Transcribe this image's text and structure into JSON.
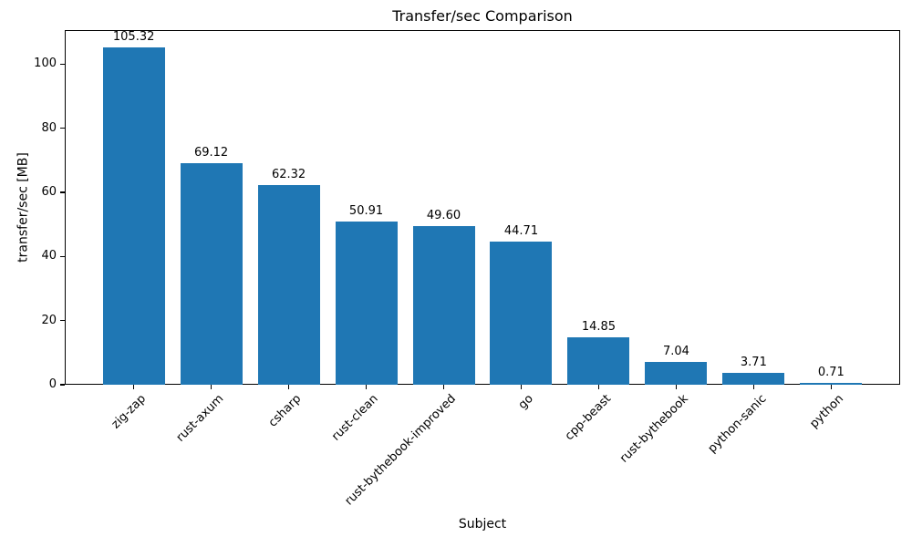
{
  "chart_data": {
    "type": "bar",
    "title": "Transfer/sec Comparison",
    "xlabel": "Subject",
    "ylabel": "transfer/sec [MB]",
    "categories": [
      "zig-zap",
      "rust-axum",
      "csharp",
      "rust-clean",
      "rust-bythebook-improved",
      "go",
      "cpp-beast",
      "rust-bythebook",
      "python-sanic",
      "python"
    ],
    "values": [
      105.32,
      69.12,
      62.32,
      50.91,
      49.6,
      44.71,
      14.85,
      7.04,
      3.71,
      0.71
    ],
    "value_labels": [
      "105.32",
      "69.12",
      "62.32",
      "50.91",
      "49.60",
      "44.71",
      "14.85",
      "7.04",
      "3.71",
      "0.71"
    ],
    "yticks": [
      0,
      20,
      40,
      60,
      80,
      100
    ],
    "ytick_labels": [
      "0",
      "20",
      "40",
      "60",
      "80",
      "100"
    ],
    "ylim": [
      0,
      110.6
    ],
    "bar_color": "#1f77b4",
    "axis_color": "#000000",
    "background_color": "#ffffff",
    "grid": false,
    "legend_position": "none",
    "x_tick_rotation_deg": 45
  }
}
